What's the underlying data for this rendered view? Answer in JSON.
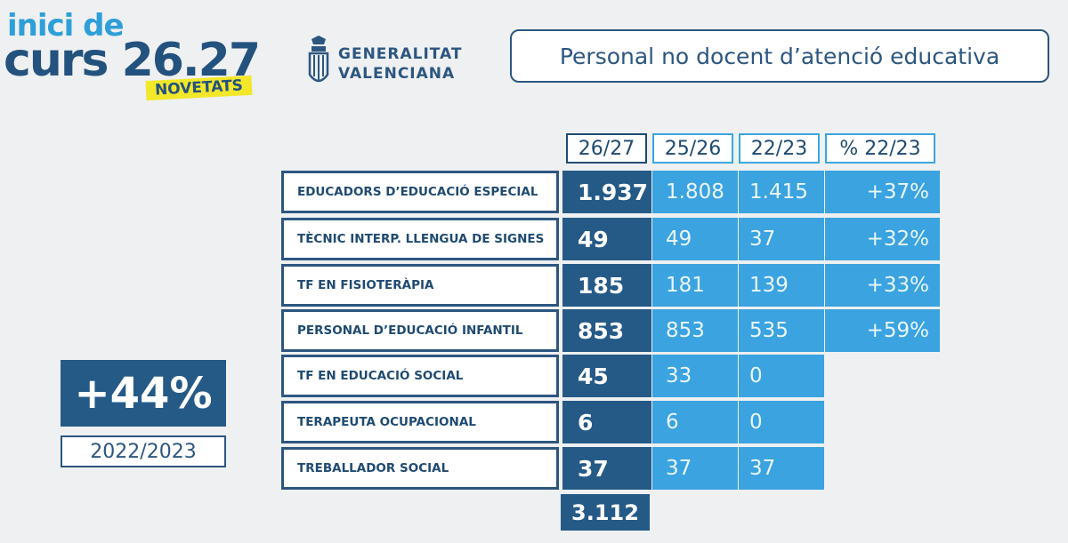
{
  "logo": {
    "line1": "inici de",
    "line2": "curs",
    "year": "26.27",
    "badge": "NOVETATS"
  },
  "institution": {
    "line1": "GENERALITAT",
    "line2": "VALENCIANA"
  },
  "title": "Personal no docent d’atenció educativa",
  "table": {
    "headers": [
      "26/27",
      "25/26",
      "22/23",
      "% 22/23"
    ],
    "rows": [
      {
        "label": "EDUCADORS D’EDUCACIÓ ESPECIAL",
        "v2627": "1.937",
        "v2526": "1.808",
        "v2223": "1.415",
        "pct": "+37%"
      },
      {
        "label": "TÈCNIC INTERP. LLENGUA DE SIGNES",
        "v2627": "49",
        "v2526": "49",
        "v2223": "37",
        "pct": "+32%"
      },
      {
        "label": "TF EN FISIOTERÀPIA",
        "v2627": "185",
        "v2526": "181",
        "v2223": "139",
        "pct": "+33%"
      },
      {
        "label": "PERSONAL D’EDUCACIÓ INFANTIL",
        "v2627": "853",
        "v2526": "853",
        "v2223": "535",
        "pct": "+59%"
      },
      {
        "label": "TF EN EDUCACIÓ SOCIAL",
        "v2627": "45",
        "v2526": "33",
        "v2223": "0",
        "pct": ""
      },
      {
        "label": "TERAPEUTA OCUPACIONAL",
        "v2627": "6",
        "v2526": "6",
        "v2223": "0",
        "pct": ""
      },
      {
        "label": "TREBALLADOR SOCIAL",
        "v2627": "37",
        "v2526": "37",
        "v2223": "37",
        "pct": ""
      }
    ],
    "total": "3.112"
  },
  "summary": {
    "value": "+44%",
    "period": "2022/2023"
  },
  "colors": {
    "dark_blue": "#255a87",
    "light_blue": "#3ba3e0",
    "yellow": "#f3e72a",
    "background": "#eef0f1"
  }
}
